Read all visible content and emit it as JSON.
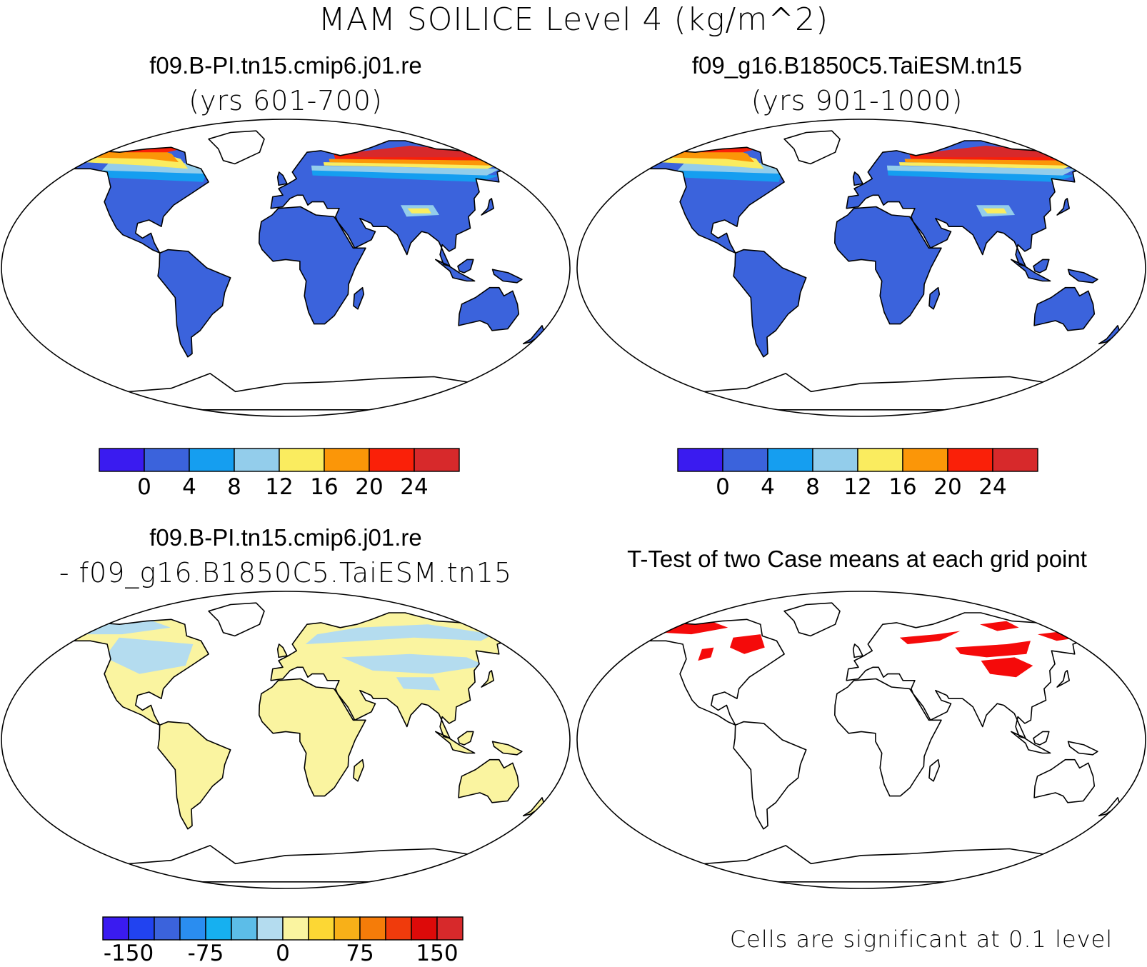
{
  "figure": {
    "main_title": "MAM SOILICE Level 4 (kg/m^2)"
  },
  "panels": [
    {
      "id": "case1",
      "title": "f09.B-PI.tn15.cmip6.j01.re",
      "subtitle": "(yrs 601-700)",
      "field": "absolute",
      "colorbar": {
        "colors": [
          "#3a1bf0",
          "#3b63dc",
          "#159ef0",
          "#93cdeb",
          "#faec5f",
          "#fb9608",
          "#fa2008",
          "#d7292b"
        ],
        "tick_labels": [
          "0",
          "4",
          "8",
          "12",
          "16",
          "20",
          "24"
        ]
      }
    },
    {
      "id": "case2",
      "title": "f09_g16.B1850C5.TaiESM.tn15",
      "subtitle": "(yrs 901-1000)",
      "field": "absolute",
      "colorbar": {
        "colors": [
          "#3a1bf0",
          "#3b63dc",
          "#159ef0",
          "#93cdeb",
          "#faec5f",
          "#fb9608",
          "#fa2008",
          "#d7292b"
        ],
        "tick_labels": [
          "0",
          "4",
          "8",
          "12",
          "16",
          "20",
          "24"
        ]
      }
    },
    {
      "id": "diff",
      "title": "f09.B-PI.tn15.cmip6.j01.re",
      "subtitle": "- f09_g16.B1850C5.TaiESM.tn15",
      "field": "difference",
      "colorbar": {
        "colors": [
          "#3a1bf0",
          "#2143f0",
          "#3b63dc",
          "#2a8df0",
          "#16b0f0",
          "#5cbde8",
          "#b4dcef",
          "#faf4a0",
          "#fcd734",
          "#f8b018",
          "#f57c09",
          "#f03b0c",
          "#dd0a09",
          "#d7292b"
        ],
        "tick_labels": [
          "-150",
          "-75",
          "0",
          "75",
          "150"
        ]
      }
    },
    {
      "id": "ttest",
      "title": "T-Test of two Case means at each grid point",
      "subtitle": "",
      "field": "significance",
      "note": "Cells are significant at 0.1 level",
      "sig_color": "#f50a0a"
    }
  ],
  "map_colors": {
    "land_base_abs": "#3b63dc",
    "land_base_diff": "#faf4a0",
    "coast": "#000000",
    "frame": "#000000"
  }
}
